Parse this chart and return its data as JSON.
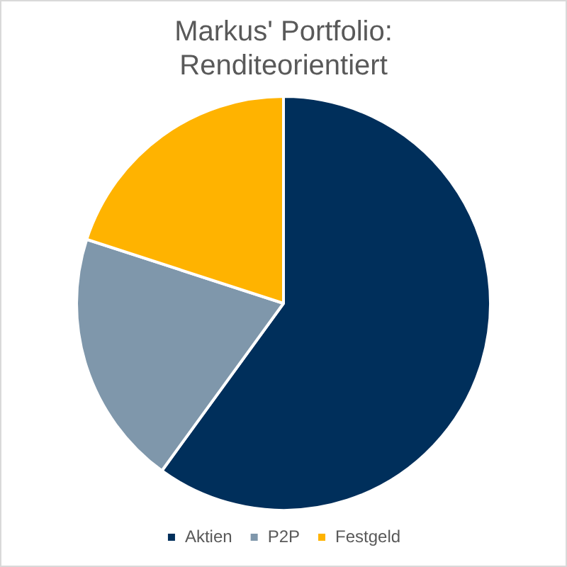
{
  "chart_data": {
    "type": "pie",
    "title": "Markus' Portfolio: Renditeorientiert",
    "categories": [
      "Aktien",
      "P2P",
      "Festgeld"
    ],
    "values": [
      60,
      20,
      20
    ],
    "colors": [
      "#002f5b",
      "#7f97ab",
      "#ffb300"
    ],
    "legend": "bottom"
  }
}
